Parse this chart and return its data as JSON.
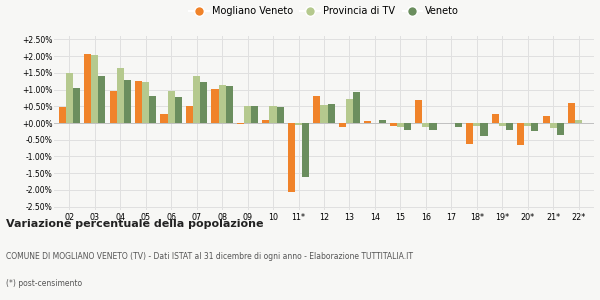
{
  "categories": [
    "02",
    "03",
    "04",
    "05",
    "06",
    "07",
    "08",
    "09",
    "10",
    "11*",
    "12",
    "13",
    "14",
    "15",
    "16",
    "17",
    "18*",
    "19*",
    "20*",
    "21*",
    "22*"
  ],
  "mogliano": [
    0.48,
    2.05,
    0.95,
    1.27,
    0.27,
    0.5,
    1.02,
    -0.02,
    0.1,
    -2.07,
    0.8,
    -0.13,
    0.05,
    -0.08,
    0.68,
    0.0,
    -0.62,
    0.28,
    -0.65,
    0.2,
    0.6
  ],
  "provincia": [
    1.5,
    2.03,
    1.65,
    1.22,
    0.95,
    1.4,
    1.13,
    0.52,
    0.5,
    -0.07,
    0.55,
    0.72,
    0.0,
    -0.13,
    -0.13,
    0.0,
    -0.08,
    -0.1,
    -0.1,
    -0.15,
    0.1
  ],
  "veneto": [
    1.05,
    1.4,
    1.3,
    0.82,
    0.77,
    1.23,
    1.1,
    0.52,
    0.48,
    -1.6,
    0.57,
    0.92,
    0.1,
    -0.2,
    -0.2,
    -0.12,
    -0.38,
    -0.22,
    -0.25,
    -0.35,
    0.0
  ],
  "color_mogliano": "#f0832a",
  "color_provincia": "#b5c98e",
  "color_veneto": "#6b8e5e",
  "bg_color": "#f7f7f5",
  "grid_color": "#e0e0e0",
  "ylim": [
    -2.6,
    2.6
  ],
  "yticks": [
    -2.5,
    -2.0,
    -1.5,
    -1.0,
    -0.5,
    0.0,
    0.5,
    1.0,
    1.5,
    2.0,
    2.5
  ],
  "title": "Variazione percentuale della popolazione",
  "legend_labels": [
    "Mogliano Veneto",
    "Provincia di TV",
    "Veneto"
  ],
  "footnote1": "COMUNE DI MOGLIANO VENETO (TV) - Dati ISTAT al 31 dicembre di ogni anno - Elaborazione TUTTITALIA.IT",
  "footnote2": "(*) post-censimento"
}
